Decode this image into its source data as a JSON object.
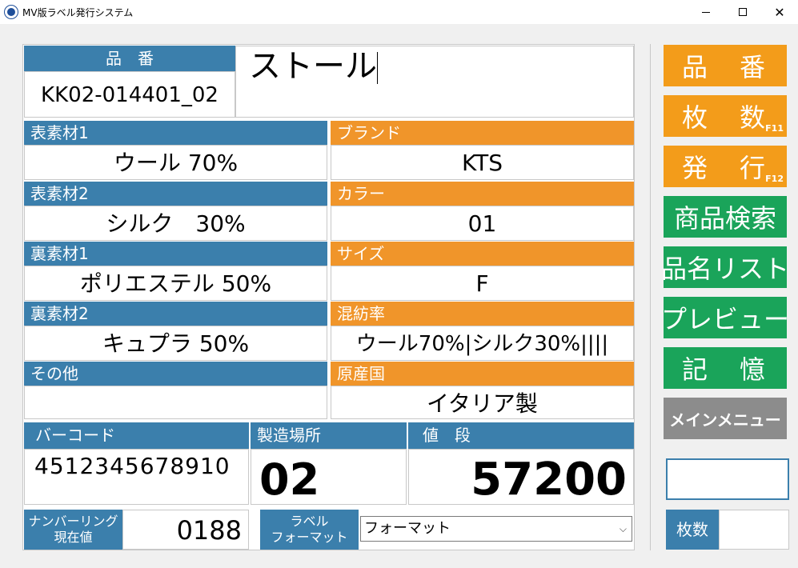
{
  "window": {
    "title": "MV版ラベル発行システム"
  },
  "product": {
    "code_label": "品　番",
    "code_value": "KK02-014401_02",
    "name_value": "ストール"
  },
  "grid_left": [
    {
      "label": "表素材1",
      "value": "ウール 70%"
    },
    {
      "label": "表素材2",
      "value": "シルク　30%"
    },
    {
      "label": "裏素材1",
      "value": "ポリエステル 50%"
    },
    {
      "label": "裏素材2",
      "value": "キュプラ 50%"
    },
    {
      "label": "その他",
      "value": ""
    }
  ],
  "grid_right": [
    {
      "label": "ブランド",
      "value": "KTS"
    },
    {
      "label": "カラー",
      "value": "01"
    },
    {
      "label": "サイズ",
      "value": "F"
    },
    {
      "label": "混紡率",
      "value": "ウール70%|シルク30%||||"
    },
    {
      "label": "原産国",
      "value": "イタリア製"
    }
  ],
  "barcode": {
    "label": "バーコード",
    "value": "4512345678910"
  },
  "factory": {
    "label": "製造場所",
    "value": "02"
  },
  "price": {
    "label": "値　段",
    "value": "57200"
  },
  "numbering": {
    "label_line1": "ナンバーリング",
    "label_line2": "現在値",
    "value": "0188"
  },
  "label_format": {
    "label_line1": "ラベル",
    "label_line2": "フォーマット",
    "selected": "フォーマット"
  },
  "side_buttons": {
    "code": "品　番",
    "count": "枚　数",
    "count_key": "F11",
    "issue": "発　行",
    "issue_key": "F12",
    "search": "商品検索",
    "namelist": "品名リスト",
    "preview": "プレビュー",
    "memory": "記　憶",
    "main_menu": "メインメニュー"
  },
  "copies": {
    "label": "枚数",
    "value": ""
  },
  "colors": {
    "blue_header": "#3b7fac",
    "orange_header": "#f0952a",
    "orange_button": "#f39c1a",
    "green_button": "#1aa45a",
    "gray_button": "#8c8c8c"
  }
}
